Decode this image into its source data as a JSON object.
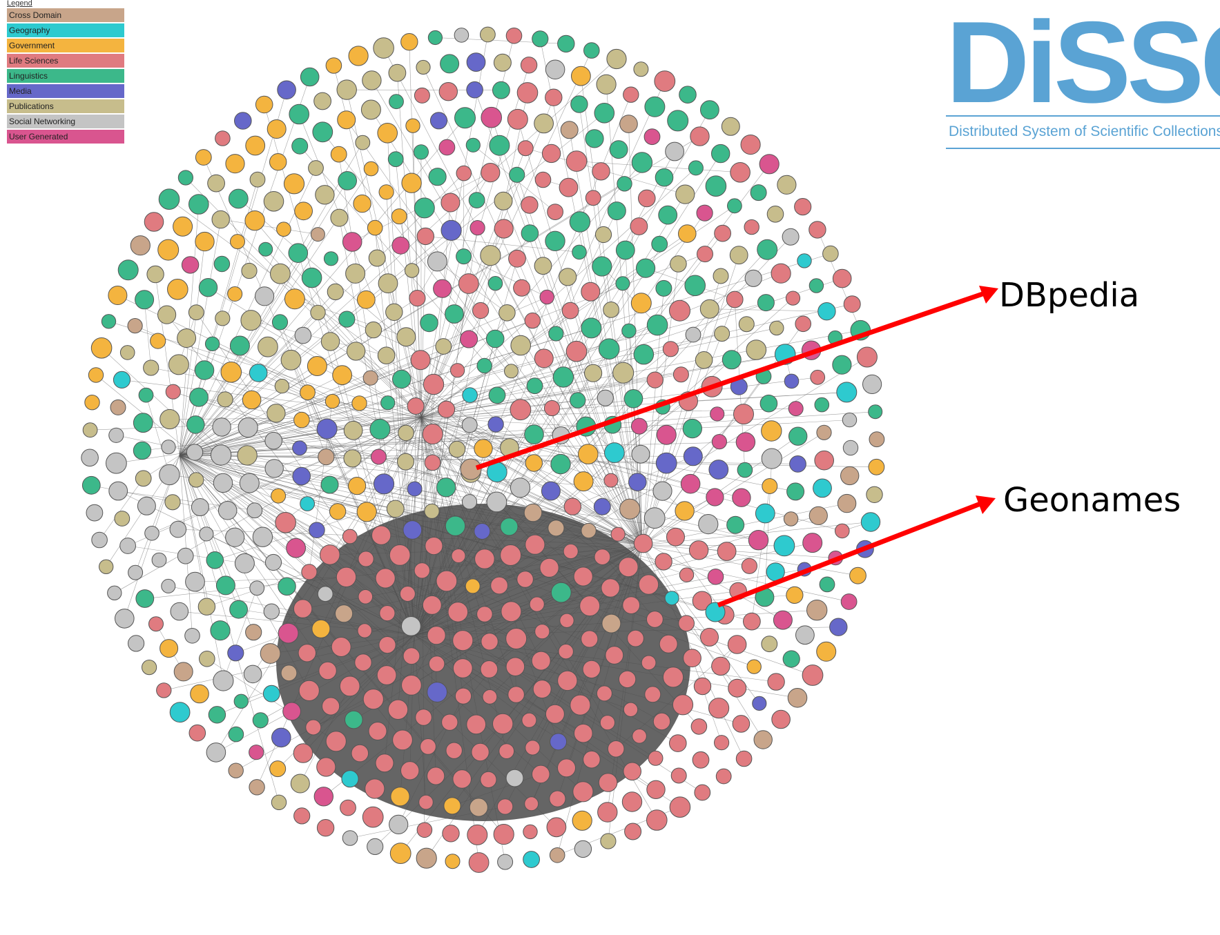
{
  "legend": {
    "title": "Legend",
    "items": [
      {
        "label": "Cross Domain",
        "color": "#c8a58a"
      },
      {
        "label": "Geography",
        "color": "#2ecacf"
      },
      {
        "label": "Government",
        "color": "#f4b43f"
      },
      {
        "label": "Life Sciences",
        "color": "#e07b80"
      },
      {
        "label": "Linguistics",
        "color": "#3cb88a"
      },
      {
        "label": "Media",
        "color": "#6668c9"
      },
      {
        "label": "Publications",
        "color": "#c7bd8c"
      },
      {
        "label": "Social Networking",
        "color": "#c4c4c4"
      },
      {
        "label": "User Generated",
        "color": "#d9558f"
      }
    ]
  },
  "logo": {
    "text": "DiSSCo",
    "tagline": "Distributed System of Scientific Collections",
    "color": "#5aa3d4"
  },
  "annotations": [
    {
      "label": "DBpedia",
      "color": "#ff0000"
    },
    {
      "label": "Geonames",
      "color": "#ff0000"
    }
  ],
  "graph": {
    "edge_color": "#555555",
    "node_border_color": "#555555"
  }
}
